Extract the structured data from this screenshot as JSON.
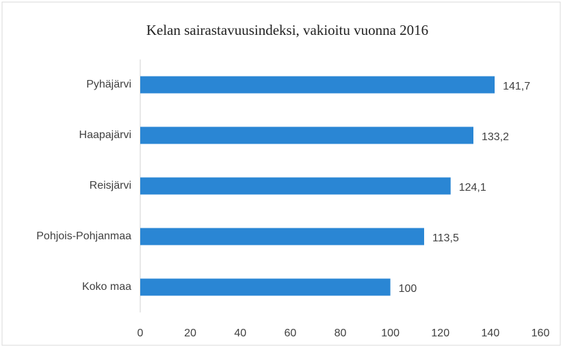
{
  "chart_data": {
    "type": "bar",
    "orientation": "horizontal",
    "title": "Kelan sairastavuusindeksi, vakioitu vuonna 2016",
    "categories": [
      "Pyhäjärvi",
      "Haapajärvi",
      "Reisjärvi",
      "Pohjois-Pohjanmaa",
      "Koko maa"
    ],
    "values": [
      141.7,
      133.2,
      124.1,
      113.5,
      100
    ],
    "value_labels": [
      "141,7",
      "133,2",
      "124,1",
      "113,5",
      "100"
    ],
    "color": "#2a86d4",
    "xlim": [
      0,
      160
    ],
    "xticks": [
      0,
      20,
      40,
      60,
      80,
      100,
      120,
      140,
      160
    ],
    "grid": false
  }
}
